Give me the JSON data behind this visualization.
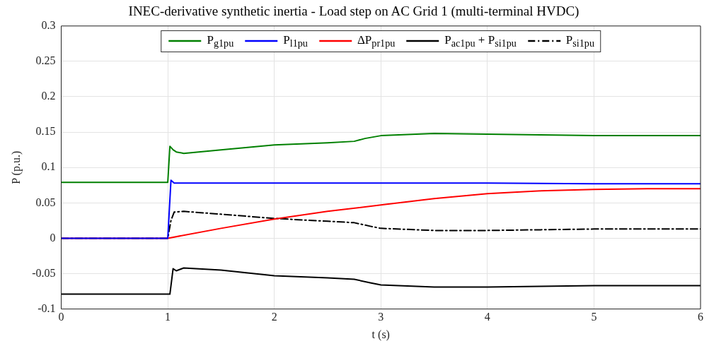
{
  "chart_data": {
    "type": "line",
    "title": "INEC-derivative synthetic inertia - Load step on AC Grid 1 (multi-terminal HVDC)",
    "xlabel": "t (s)",
    "ylabel": "P (p.u.)",
    "xlim": [
      0,
      6
    ],
    "xticks": [
      0,
      1,
      2,
      3,
      4,
      5,
      6
    ],
    "ylim": [
      -0.1,
      0.3
    ],
    "yticks": [
      -0.1,
      -0.05,
      0,
      0.05,
      0.1,
      0.15,
      0.2,
      0.25,
      0.3
    ],
    "grid": true,
    "legend": "top",
    "marker": "none",
    "series": [
      {
        "name": "P$_{g1pu}$",
        "color": "#008000",
        "line_style": "solid",
        "x": [
          0,
          1,
          1.02,
          1.05,
          1.08,
          1.15,
          1.5,
          2,
          2.5,
          2.75,
          2.85,
          3,
          3.5,
          4,
          4.5,
          5,
          5.5,
          6
        ],
        "values": [
          0.079,
          0.079,
          0.13,
          0.125,
          0.122,
          0.12,
          0.125,
          0.132,
          0.135,
          0.137,
          0.141,
          0.145,
          0.148,
          0.147,
          0.146,
          0.145,
          0.145,
          0.145
        ]
      },
      {
        "name": "P$_{l1pu}$",
        "color": "#0000ff",
        "line_style": "solid",
        "x": [
          0,
          1,
          1.03,
          1.06,
          2,
          3,
          4,
          5,
          6
        ],
        "values": [
          0,
          0,
          0.082,
          0.078,
          0.078,
          0.078,
          0.078,
          0.077,
          0.077
        ]
      },
      {
        "name": "ΔP$_{pr1pu}$",
        "color": "#ff0000",
        "line_style": "solid",
        "x": [
          0,
          1,
          1.5,
          2,
          2.5,
          3,
          3.5,
          4,
          4.5,
          5,
          5.5,
          6
        ],
        "values": [
          0,
          0,
          0.014,
          0.027,
          0.038,
          0.047,
          0.056,
          0.063,
          0.067,
          0.069,
          0.07,
          0.07
        ]
      },
      {
        "name": "P$_{ac1pu}$ + P$_{si1pu}$",
        "color": "#000000",
        "line_style": "solid",
        "x": [
          0,
          1,
          1.02,
          1.05,
          1.08,
          1.15,
          1.5,
          2,
          2.5,
          2.75,
          2.9,
          3,
          3.5,
          4,
          4.5,
          5,
          5.5,
          6
        ],
        "values": [
          -0.079,
          -0.079,
          -0.079,
          -0.043,
          -0.046,
          -0.042,
          -0.045,
          -0.053,
          -0.056,
          -0.058,
          -0.063,
          -0.066,
          -0.069,
          -0.069,
          -0.068,
          -0.067,
          -0.067,
          -0.067
        ]
      },
      {
        "name": "P$_{si1pu}$",
        "color": "#000000",
        "line_style": "dashdot",
        "x": [
          0,
          1,
          1.03,
          1.06,
          1.15,
          1.5,
          2,
          2.5,
          2.75,
          2.9,
          3,
          3.5,
          4,
          4.5,
          5,
          5.5,
          6
        ],
        "values": [
          0,
          0,
          0.025,
          0.037,
          0.038,
          0.034,
          0.028,
          0.024,
          0.022,
          0.017,
          0.014,
          0.011,
          0.011,
          0.012,
          0.013,
          0.013,
          0.013
        ]
      }
    ]
  }
}
